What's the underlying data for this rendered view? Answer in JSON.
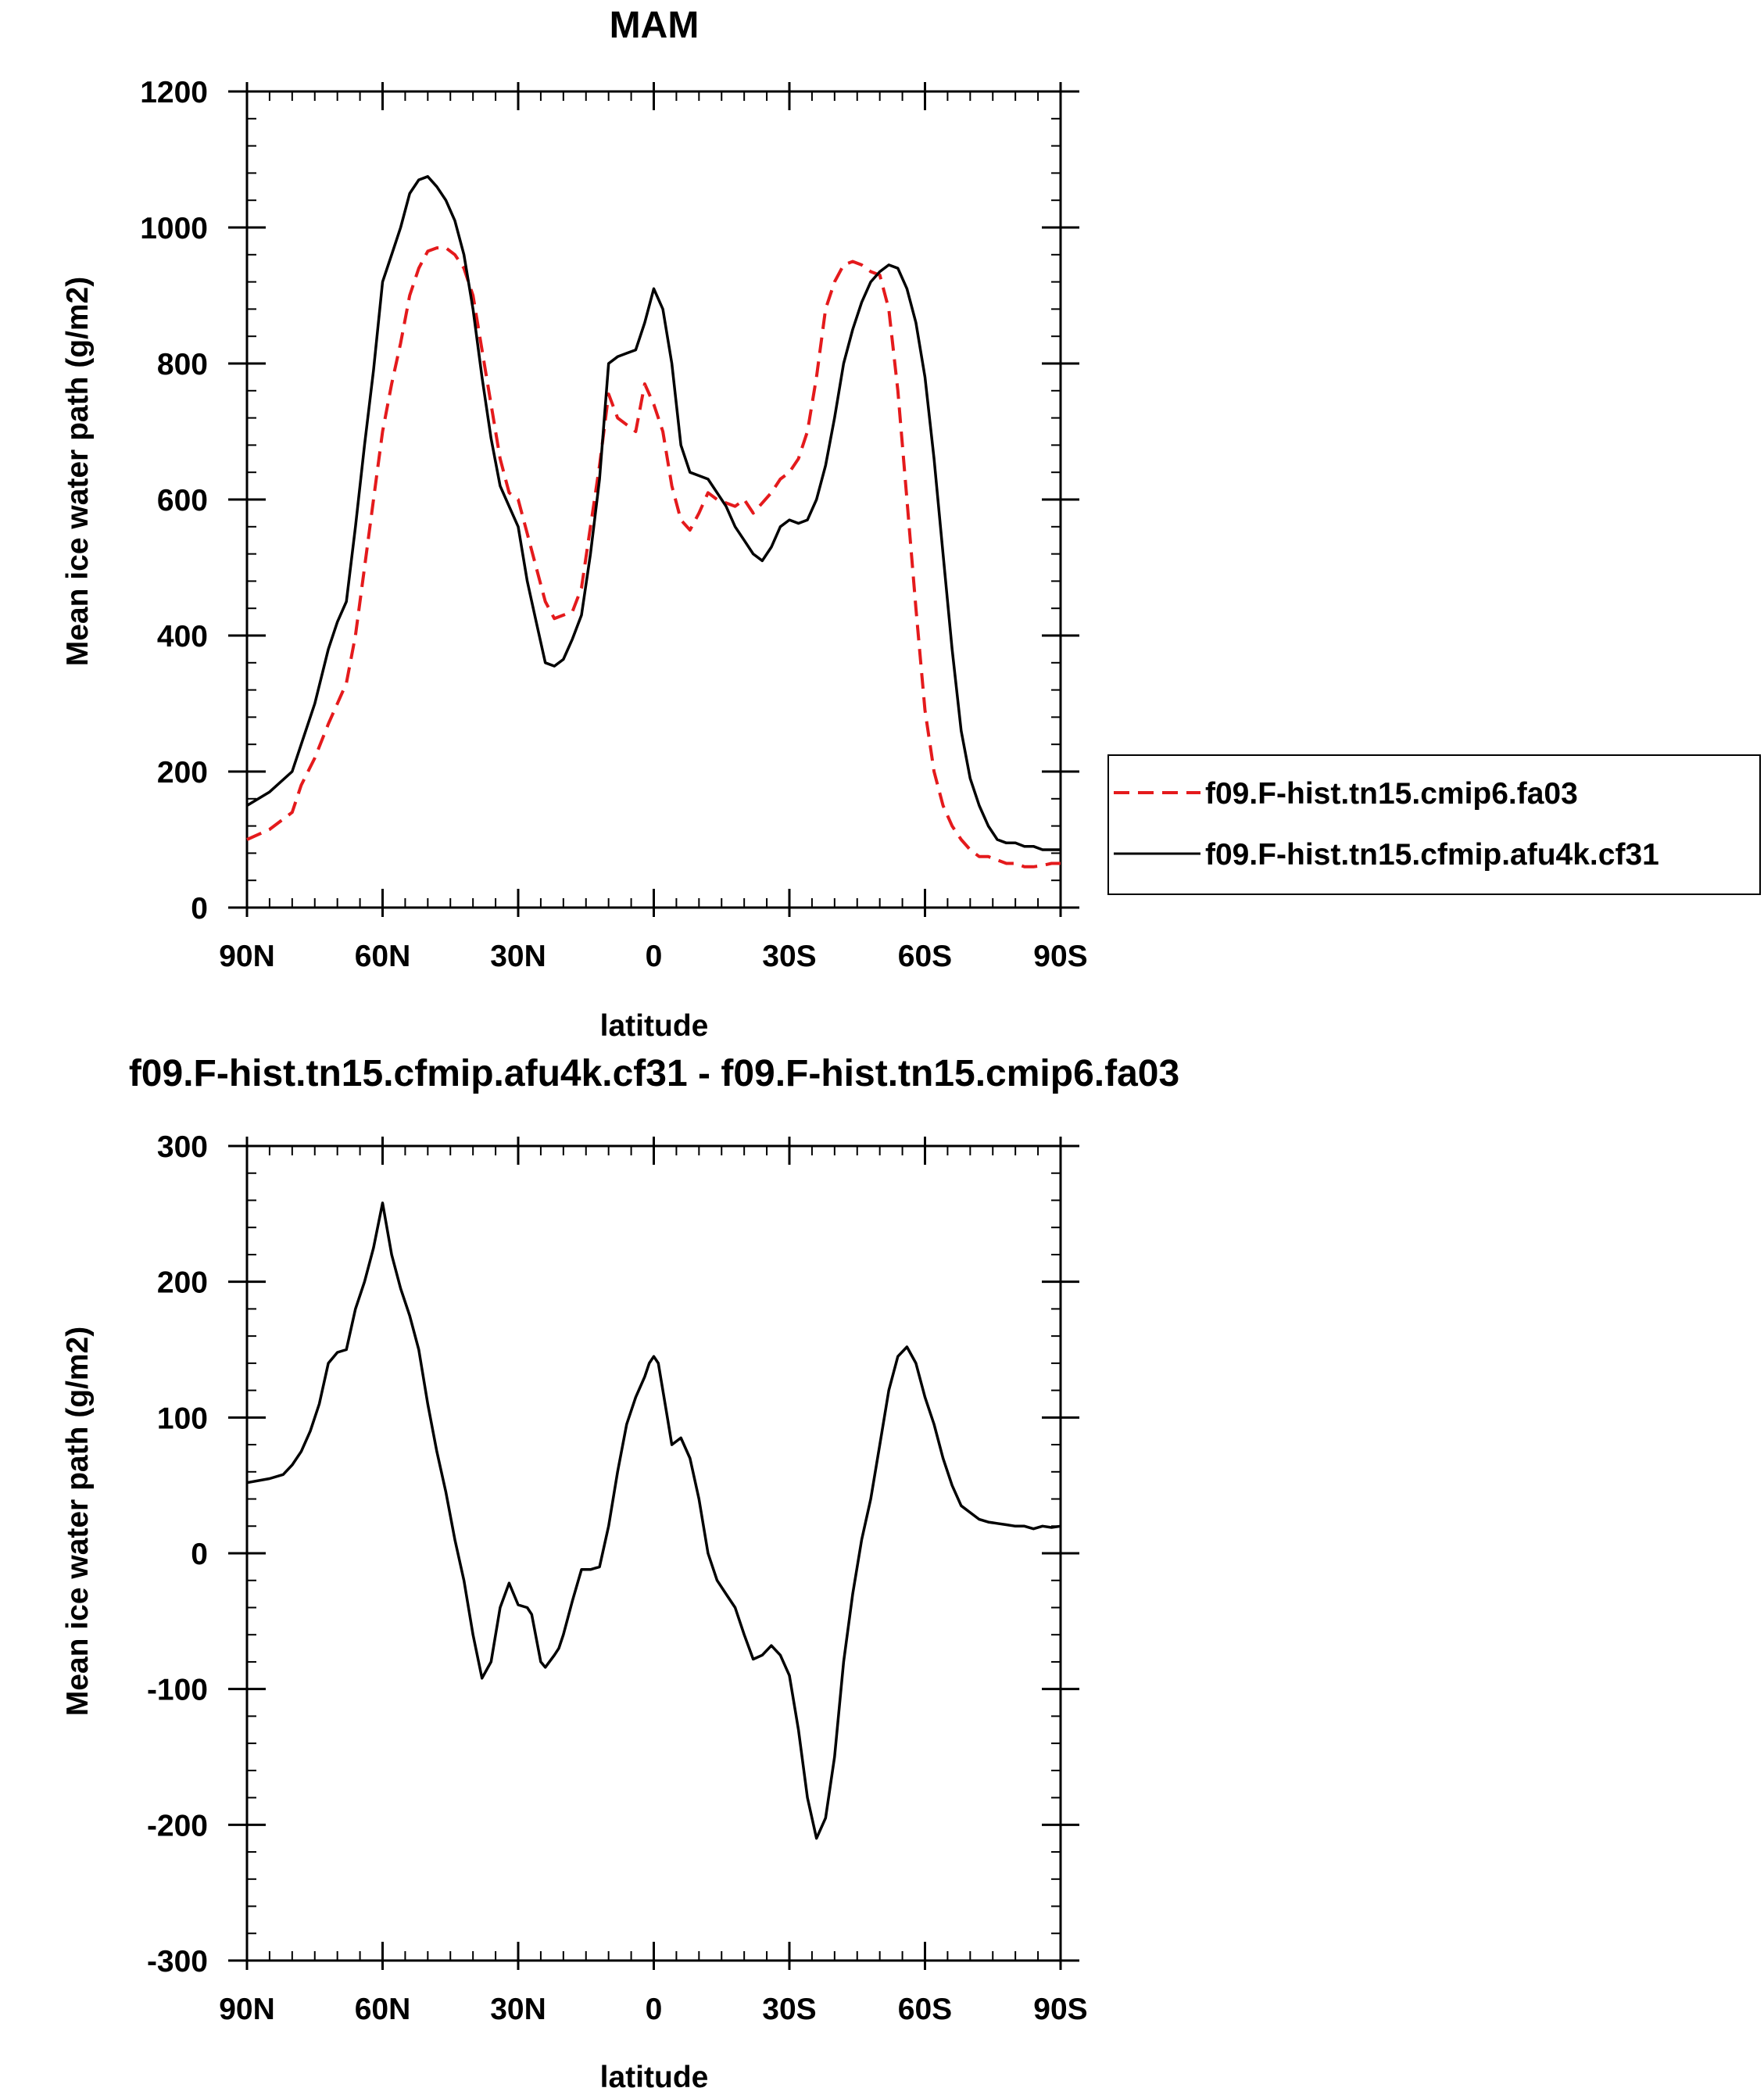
{
  "chart_data": [
    {
      "type": "line",
      "title": "MAM",
      "xlabel": "latitude",
      "ylabel": "Mean ice water path (g/m2)",
      "xlim": [
        90,
        -90
      ],
      "ylim": [
        0,
        1200
      ],
      "xticks": [
        90,
        60,
        30,
        0,
        -30,
        -60,
        -90
      ],
      "xtick_labels": [
        "90N",
        "60N",
        "30N",
        "0",
        "30S",
        "60S",
        "90S"
      ],
      "yticks": [
        0,
        200,
        400,
        600,
        800,
        1000,
        1200
      ],
      "ytick_labels": [
        "0",
        "200",
        "400",
        "600",
        "800",
        "1000",
        "1200"
      ],
      "grid": false,
      "legend_position": "right",
      "series": [
        {
          "name": "f09.F-hist.tn15.cmip6.fa03",
          "color": "#e41a1c",
          "dash": "dashed",
          "x": [
            90,
            85,
            80,
            78,
            75,
            72,
            70,
            68,
            66,
            64,
            62,
            60,
            58,
            56,
            54,
            52,
            50,
            48,
            46,
            44,
            42,
            40,
            38,
            36,
            34,
            32,
            30,
            28,
            26,
            24,
            22,
            20,
            18,
            16,
            14,
            12,
            10,
            8,
            6,
            4,
            2,
            0,
            -2,
            -4,
            -6,
            -8,
            -10,
            -12,
            -14,
            -16,
            -18,
            -20,
            -22,
            -24,
            -26,
            -28,
            -30,
            -32,
            -34,
            -36,
            -38,
            -40,
            -42,
            -44,
            -46,
            -48,
            -50,
            -52,
            -54,
            -56,
            -58,
            -60,
            -62,
            -64,
            -66,
            -68,
            -70,
            -72,
            -74,
            -76,
            -78,
            -80,
            -82,
            -84,
            -86,
            -88,
            -90
          ],
          "y": [
            100,
            115,
            140,
            180,
            220,
            270,
            300,
            330,
            400,
            500,
            600,
            700,
            770,
            830,
            900,
            940,
            965,
            970,
            970,
            960,
            940,
            900,
            820,
            740,
            660,
            610,
            600,
            550,
            500,
            450,
            425,
            430,
            435,
            470,
            560,
            650,
            755,
            720,
            710,
            700,
            770,
            740,
            700,
            620,
            570,
            555,
            580,
            610,
            600,
            595,
            590,
            600,
            580,
            595,
            610,
            630,
            640,
            660,
            700,
            780,
            880,
            920,
            945,
            950,
            945,
            935,
            930,
            880,
            760,
            600,
            440,
            290,
            200,
            150,
            120,
            100,
            85,
            75,
            75,
            70,
            65,
            65,
            60,
            60,
            62,
            65,
            65
          ]
        },
        {
          "name": "f09.F-hist.tn15.cfmip.afu4k.cf31",
          "color": "#000000",
          "dash": "solid",
          "x": [
            90,
            85,
            80,
            78,
            75,
            72,
            70,
            68,
            66,
            64,
            62,
            60,
            58,
            56,
            54,
            52,
            50,
            48,
            46,
            44,
            42,
            40,
            38,
            36,
            34,
            32,
            30,
            28,
            26,
            24,
            22,
            20,
            18,
            16,
            14,
            12,
            10,
            8,
            6,
            4,
            2,
            0,
            -2,
            -4,
            -6,
            -8,
            -10,
            -12,
            -14,
            -16,
            -18,
            -20,
            -22,
            -24,
            -26,
            -28,
            -30,
            -32,
            -34,
            -36,
            -38,
            -40,
            -42,
            -44,
            -46,
            -48,
            -50,
            -52,
            -54,
            -56,
            -58,
            -60,
            -62,
            -64,
            -66,
            -68,
            -70,
            -72,
            -74,
            -76,
            -78,
            -80,
            -82,
            -84,
            -86,
            -88,
            -90
          ],
          "y": [
            150,
            170,
            200,
            240,
            300,
            380,
            420,
            450,
            560,
            680,
            790,
            920,
            960,
            1000,
            1050,
            1070,
            1075,
            1060,
            1040,
            1010,
            960,
            880,
            780,
            690,
            620,
            590,
            560,
            480,
            420,
            360,
            355,
            365,
            395,
            430,
            520,
            630,
            800,
            810,
            815,
            820,
            860,
            910,
            880,
            800,
            680,
            640,
            635,
            630,
            610,
            590,
            560,
            540,
            520,
            510,
            530,
            560,
            570,
            565,
            570,
            600,
            650,
            720,
            800,
            850,
            890,
            920,
            935,
            945,
            940,
            910,
            860,
            780,
            660,
            520,
            380,
            260,
            190,
            150,
            120,
            100,
            95,
            95,
            90,
            90,
            85,
            85,
            85
          ]
        }
      ]
    },
    {
      "type": "line",
      "title": "f09.F-hist.tn15.cfmip.afu4k.cf31 - f09.F-hist.tn15.cmip6.fa03",
      "xlabel": "latitude",
      "ylabel": "Mean ice water path (g/m2)",
      "xlim": [
        90,
        -90
      ],
      "ylim": [
        -300,
        300
      ],
      "xticks": [
        90,
        60,
        30,
        0,
        -30,
        -60,
        -90
      ],
      "xtick_labels": [
        "90N",
        "60N",
        "30N",
        "0",
        "30S",
        "60S",
        "90S"
      ],
      "yticks": [
        -300,
        -200,
        -100,
        0,
        100,
        200,
        300
      ],
      "ytick_labels": [
        "-300",
        "-200",
        "-100",
        "0",
        "100",
        "200",
        "300"
      ],
      "grid": false,
      "series": [
        {
          "color": "#000000",
          "dash": "solid",
          "x": [
            90,
            85,
            82,
            80,
            78,
            76,
            74,
            72,
            70,
            68,
            66,
            64,
            62,
            60,
            58,
            56,
            54,
            52,
            50,
            48,
            46,
            44,
            42,
            40,
            38,
            36,
            34,
            32,
            30,
            28,
            27,
            25,
            24,
            22,
            21,
            20,
            18,
            16,
            14,
            12,
            10,
            8,
            6,
            4,
            2,
            1,
            0,
            -1,
            -2,
            -3,
            -4,
            -6,
            -8,
            -10,
            -12,
            -14,
            -16,
            -18,
            -20,
            -22,
            -24,
            -26,
            -28,
            -30,
            -32,
            -34,
            -36,
            -38,
            -40,
            -42,
            -44,
            -46,
            -48,
            -50,
            -52,
            -54,
            -56,
            -58,
            -60,
            -62,
            -64,
            -66,
            -68,
            -70,
            -72,
            -74,
            -76,
            -78,
            -80,
            -82,
            -84,
            -86,
            -88,
            -90
          ],
          "y": [
            52,
            55,
            58,
            65,
            75,
            90,
            110,
            140,
            148,
            150,
            180,
            200,
            225,
            258,
            220,
            195,
            175,
            150,
            110,
            75,
            45,
            10,
            -20,
            -60,
            -92,
            -80,
            -40,
            -22,
            -38,
            -40,
            -45,
            -80,
            -84,
            -75,
            -70,
            -60,
            -35,
            -12,
            -12,
            -10,
            20,
            60,
            95,
            115,
            130,
            140,
            145,
            140,
            120,
            100,
            80,
            85,
            70,
            40,
            0,
            -20,
            -30,
            -40,
            -60,
            -78,
            -75,
            -68,
            -75,
            -90,
            -130,
            -180,
            -210,
            -195,
            -150,
            -80,
            -30,
            10,
            40,
            80,
            120,
            145,
            152,
            140,
            115,
            95,
            70,
            50,
            35,
            30,
            25,
            23,
            22,
            21,
            20,
            20,
            18,
            20,
            19,
            20
          ]
        }
      ]
    }
  ]
}
